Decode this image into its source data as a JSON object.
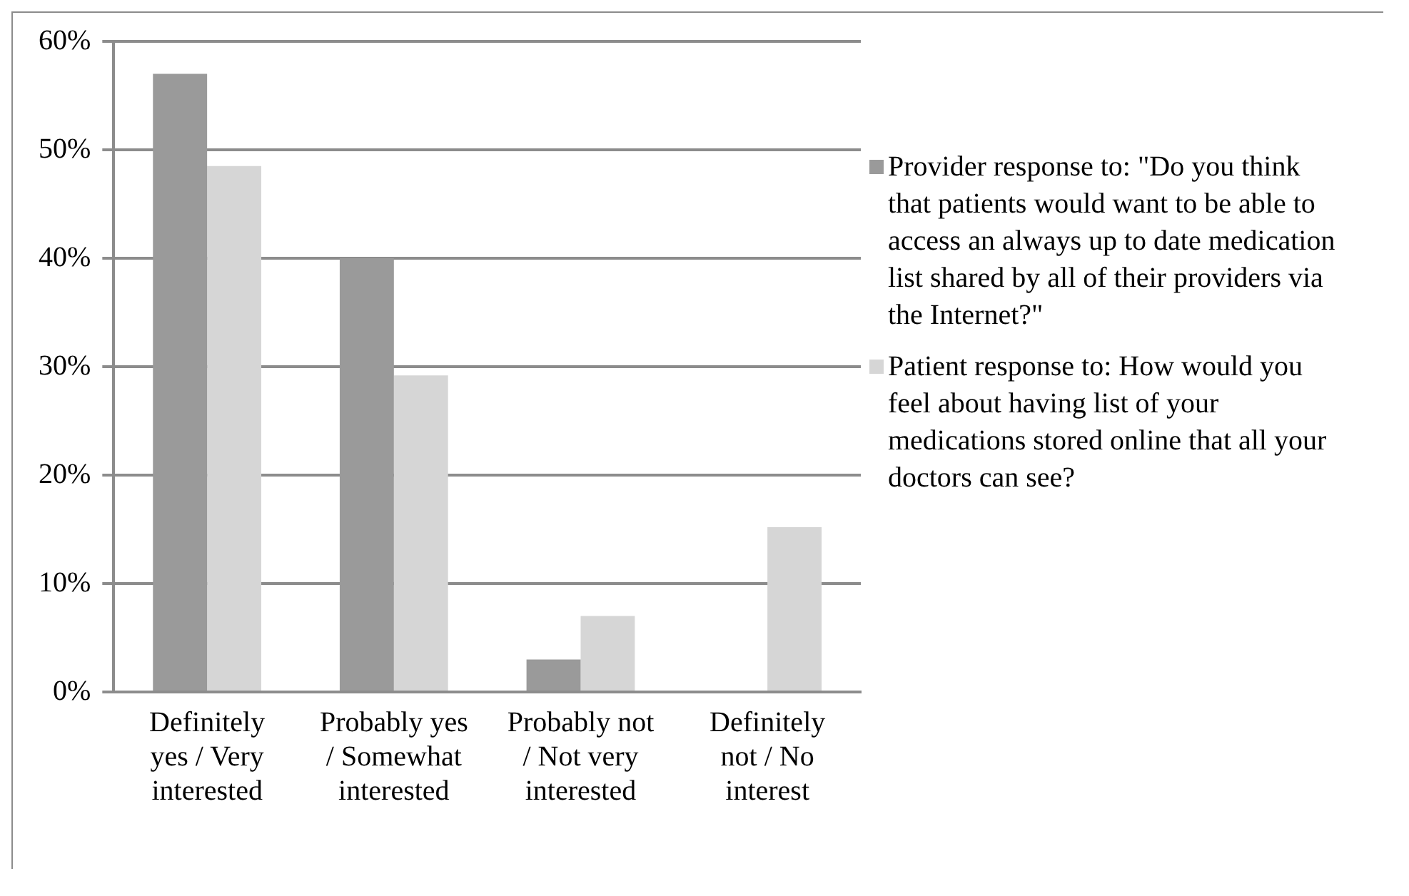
{
  "chart_data": {
    "type": "bar",
    "categories": [
      "Definitely yes / Very interested",
      "Probably yes / Somewhat interested",
      "Probably not / Not very interested",
      "Definitely not / No interest"
    ],
    "series": [
      {
        "name": "Provider response to: \"Do you think that patients would want to be able to access an always up to date medication list shared by all of their providers via the Internet?\"",
        "color": "#9a9a9a",
        "values": [
          57,
          40,
          3,
          0
        ]
      },
      {
        "name": "Patient response to:  How would you feel about having list of your medications stored online that all your doctors can see?",
        "color": "#d6d6d6",
        "values": [
          48.5,
          29.2,
          7,
          15.2
        ]
      }
    ],
    "ylim": [
      0,
      60
    ],
    "yticks": [
      {
        "value": 0,
        "label": "0%"
      },
      {
        "value": 10,
        "label": "10%"
      },
      {
        "value": 20,
        "label": "20%"
      },
      {
        "value": 30,
        "label": "30%"
      },
      {
        "value": 40,
        "label": "40%"
      },
      {
        "value": 50,
        "label": "50%"
      },
      {
        "value": 60,
        "label": "60%"
      }
    ],
    "grid": "y",
    "legend": "right"
  }
}
